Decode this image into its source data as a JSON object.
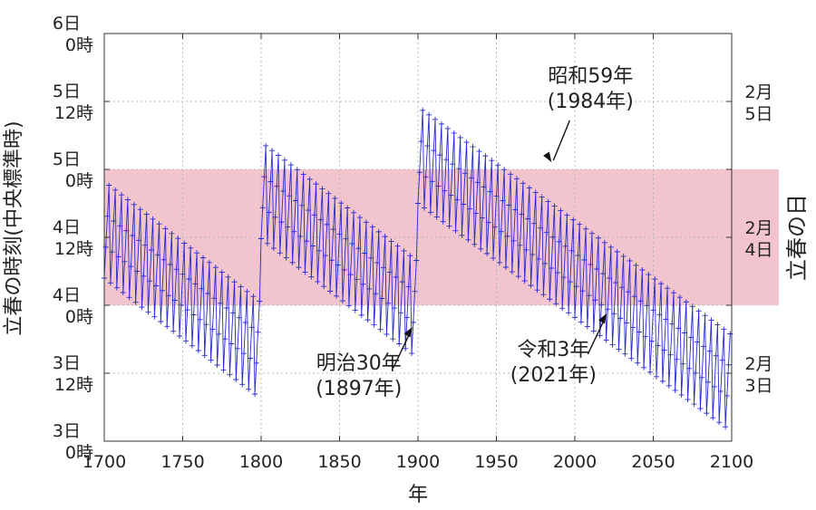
{
  "chart_data": {
    "type": "line",
    "xlabel": "年",
    "ylabel": "立春の時刻(中央標準時)",
    "right_label": "立春の日",
    "xlim": [
      1700,
      2100
    ],
    "ylim": [
      3.0,
      6.0
    ],
    "x_ticks": [
      "1700",
      "1750",
      "1800",
      "1850",
      "1900",
      "1950",
      "2000",
      "2050",
      "2100"
    ],
    "y_ticks": [
      {
        "value": 3.0,
        "day": "3日",
        "hour": "0時"
      },
      {
        "value": 3.5,
        "day": "3日",
        "hour": "12時"
      },
      {
        "value": 4.0,
        "day": "4日",
        "hour": "0時"
      },
      {
        "value": 4.5,
        "day": "4日",
        "hour": "12時"
      },
      {
        "value": 5.0,
        "day": "5日",
        "hour": "0時"
      },
      {
        "value": 5.5,
        "day": "5日",
        "hour": "12時"
      },
      {
        "value": 6.0,
        "day": "6日",
        "hour": "0時"
      }
    ],
    "right_ticks": [
      {
        "value": 3.5,
        "month": "2月",
        "day": "3日"
      },
      {
        "value": 4.5,
        "month": "2月",
        "day": "4日"
      },
      {
        "value": 5.5,
        "month": "2月",
        "day": "5日"
      }
    ],
    "band": {
      "from": 4.0,
      "to": 5.0,
      "color": "#f2c4ce"
    },
    "grid": true,
    "series_color": "#2a2ad0",
    "segments": [
      {
        "start_year": 1700,
        "end_year": 1799,
        "start_base": 4.2,
        "end_base": 3.32,
        "amplitude": 0.71
      },
      {
        "start_year": 1800,
        "end_year": 1899,
        "start_base": 4.49,
        "end_base": 3.62,
        "amplitude": 0.71
      },
      {
        "start_year": 1900,
        "end_year": 2099,
        "start_base": 4.75,
        "end_base": 3.08,
        "amplitude": 0.71
      }
    ],
    "annotations": [
      {
        "year": 1897,
        "value": 3.86,
        "line1": "明治30年",
        "line2": "(1897年)",
        "position": "below-left"
      },
      {
        "year": 1984,
        "value": 5.04,
        "line1": "昭和59年",
        "line2": "(1984年)",
        "position": "above-right"
      },
      {
        "year": 2021,
        "value": 3.96,
        "line1": "令和3年",
        "line2": "(2021年)",
        "position": "below-left"
      }
    ]
  }
}
